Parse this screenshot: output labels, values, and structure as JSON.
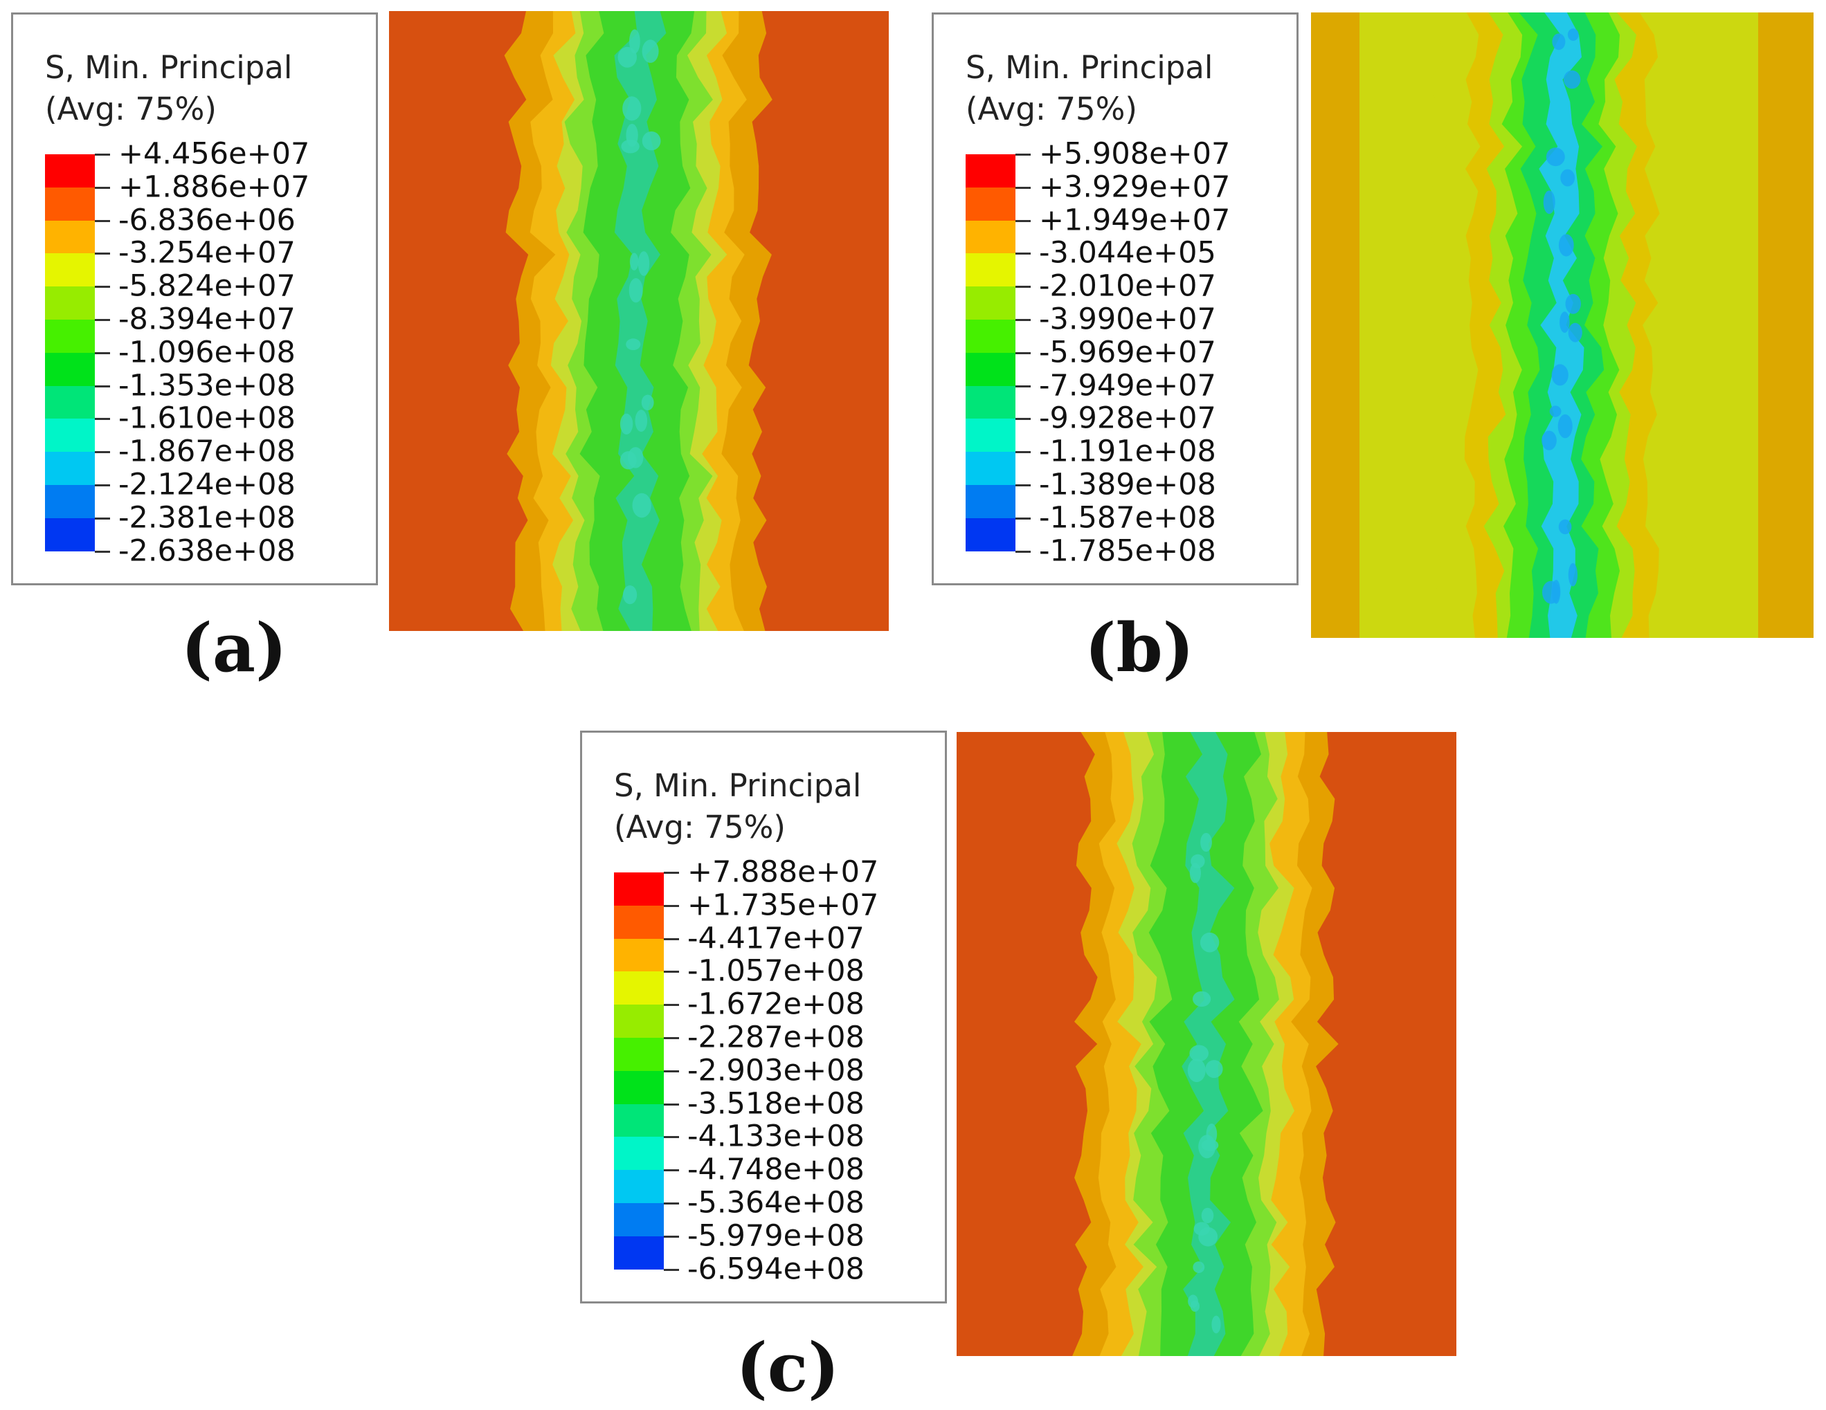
{
  "panels": [
    {
      "id": "a",
      "label": "(a)",
      "legend_title_1": "S, Min. Principal",
      "legend_title_2": "(Avg: 75%)",
      "values": [
        "+4.456e+07",
        "+1.886e+07",
        "-6.836e+06",
        "-3.254e+07",
        "-5.824e+07",
        "-8.394e+07",
        "-1.096e+08",
        "-1.353e+08",
        "-1.610e+08",
        "-1.867e+08",
        "-2.124e+08",
        "-2.381e+08",
        "-2.638e+08"
      ],
      "background_color": "#d75010"
    },
    {
      "id": "b",
      "label": "(b)",
      "legend_title_1": "S, Min. Principal",
      "legend_title_2": "(Avg: 75%)",
      "values": [
        "+5.908e+07",
        "+3.929e+07",
        "+1.949e+07",
        "-3.044e+05",
        "-2.010e+07",
        "-3.990e+07",
        "-5.969e+07",
        "-7.949e+07",
        "-9.928e+07",
        "-1.191e+08",
        "-1.389e+08",
        "-1.587e+08",
        "-1.785e+08"
      ],
      "background_color": "#ccd810"
    },
    {
      "id": "c",
      "label": "(c)",
      "legend_title_1": "S, Min. Principal",
      "legend_title_2": "(Avg: 75%)",
      "values": [
        "+7.888e+07",
        "+1.735e+07",
        "-4.417e+07",
        "-1.057e+08",
        "-1.672e+08",
        "-2.287e+08",
        "-2.903e+08",
        "-3.518e+08",
        "-4.133e+08",
        "-4.748e+08",
        "-5.364e+08",
        "-5.979e+08",
        "-6.594e+08"
      ],
      "background_color": "#d75010"
    }
  ],
  "colormap": [
    "#ff0000",
    "#ff5a00",
    "#ffb300",
    "#e5f500",
    "#97ec00",
    "#46f000",
    "#00e21a",
    "#00e578",
    "#00f5c8",
    "#00c8f2",
    "#007cf2",
    "#0037f2",
    "#0000f5"
  ]
}
